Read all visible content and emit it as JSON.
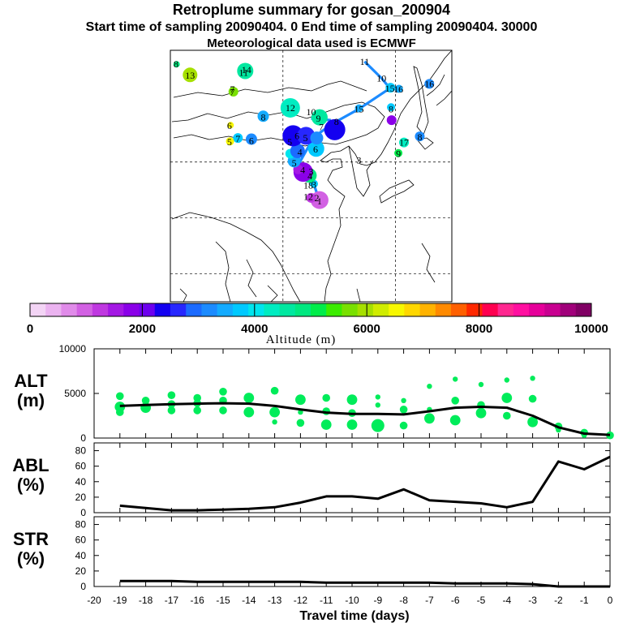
{
  "header": {
    "title": "Retroplume summary for gosan_200904",
    "sampling_line": "Start time of sampling 20090404.    0     End time of sampling 20090404. 30000",
    "met_line": "Meteorological data used is ECMWF"
  },
  "colorbar": {
    "colors": [
      "#f3d4f5",
      "#ebb3f0",
      "#e08be9",
      "#d261e3",
      "#bf38e0",
      "#a418e4",
      "#8a00e8",
      "#6d00ee",
      "#1400f0",
      "#2727ff",
      "#1c6bff",
      "#1c8bff",
      "#14abff",
      "#00c9ff",
      "#00e5ee",
      "#00ecc1",
      "#00e8a0",
      "#00e880",
      "#00ec4a",
      "#3cec00",
      "#79e000",
      "#a6e000",
      "#d0ec00",
      "#f7f700",
      "#ffd700",
      "#ffb300",
      "#ff8a00",
      "#ff6000",
      "#ff2800",
      "#ff0050",
      "#ff2890",
      "#ff10a0",
      "#e6009a",
      "#c80090",
      "#a0007a",
      "#800064"
    ],
    "tick_labels": [
      "0",
      "2000",
      "4000",
      "6000",
      "8000",
      "10000"
    ],
    "label": "Altitude (m)"
  },
  "map": {
    "numbers": [
      {
        "t": "1",
        "lon": 126.5,
        "lat": 33.0
      },
      {
        "t": "2",
        "lon": 126.0,
        "lat": 33.6
      },
      {
        "t": "3",
        "lon": 125.5,
        "lat": 36.0
      },
      {
        "t": "4",
        "lon": 124.8,
        "lat": 37.5
      },
      {
        "t": "3",
        "lon": 125.0,
        "lat": 38.3
      },
      {
        "t": "4",
        "lon": 123.5,
        "lat": 38.6
      },
      {
        "t": "5",
        "lon": 122.0,
        "lat": 39.8
      },
      {
        "t": "4",
        "lon": 123.0,
        "lat": 41.8
      },
      {
        "t": "5",
        "lon": 121.2,
        "lat": 43.6
      },
      {
        "t": "6",
        "lon": 122.5,
        "lat": 44.7
      },
      {
        "t": "5",
        "lon": 124.0,
        "lat": 44.3
      },
      {
        "t": "6",
        "lon": 125.8,
        "lat": 42.3
      },
      {
        "t": "7",
        "lon": 126.8,
        "lat": 46.3
      },
      {
        "t": "8",
        "lon": 129.5,
        "lat": 47.2
      },
      {
        "t": "9",
        "lon": 126.3,
        "lat": 47.8
      },
      {
        "t": "10",
        "lon": 125.0,
        "lat": 49.0
      },
      {
        "t": "12",
        "lon": 121.3,
        "lat": 49.7
      },
      {
        "t": "8",
        "lon": 116.5,
        "lat": 48.0
      },
      {
        "t": "6",
        "lon": 114.4,
        "lat": 43.8
      },
      {
        "t": "7",
        "lon": 112.0,
        "lat": 44.2
      },
      {
        "t": "5",
        "lon": 110.5,
        "lat": 43.6
      },
      {
        "t": "6",
        "lon": 110.5,
        "lat": 46.5
      },
      {
        "t": "7",
        "lon": 111.0,
        "lat": 52.5
      },
      {
        "t": "7",
        "lon": 111.0,
        "lat": 53.0
      },
      {
        "t": "13",
        "lon": 103.5,
        "lat": 55.5
      },
      {
        "t": "11",
        "lon": 113.0,
        "lat": 56.0
      },
      {
        "t": "14",
        "lon": 113.5,
        "lat": 56.5
      },
      {
        "t": "8",
        "lon": 101.0,
        "lat": 57.5
      },
      {
        "t": "11",
        "lon": 134.5,
        "lat": 58.0
      },
      {
        "t": "10",
        "lon": 137.5,
        "lat": 55.0
      },
      {
        "t": "15",
        "lon": 139.0,
        "lat": 53.2
      },
      {
        "t": "16",
        "lon": 140.5,
        "lat": 53.0
      },
      {
        "t": "16",
        "lon": 146.0,
        "lat": 54.0
      },
      {
        "t": "8",
        "lon": 139.2,
        "lat": 49.5
      },
      {
        "t": "15",
        "lon": 133.5,
        "lat": 49.5
      },
      {
        "t": "8",
        "lon": 144.3,
        "lat": 44.5
      },
      {
        "t": "17",
        "lon": 141.5,
        "lat": 43.5
      },
      {
        "t": "9",
        "lon": 140.5,
        "lat": 41.5
      },
      {
        "t": "3",
        "lon": 133.5,
        "lat": 40.3
      },
      {
        "t": "12",
        "lon": 124.5,
        "lat": 33.8
      },
      {
        "t": "18",
        "lon": 124.5,
        "lat": 35.8
      }
    ]
  },
  "chart_data": [
    {
      "type": "line",
      "name": "ALT",
      "ylabel": "ALT\n(m)",
      "ylabel_lines": [
        "ALT",
        "(m)"
      ],
      "ylim": [
        0,
        10000
      ],
      "ytick_labels": [
        "10000",
        "5000",
        "0"
      ],
      "x": [
        0,
        -1,
        -2,
        -3,
        -4,
        -5,
        -6,
        -7,
        -8,
        -9,
        -10,
        -11,
        -12,
        -13,
        -14,
        -15,
        -16,
        -17,
        -18,
        -19
      ],
      "series": [
        {
          "name": "mean altitude",
          "values": [
            350,
            500,
            1200,
            2500,
            3400,
            3500,
            3400,
            3000,
            2650,
            2700,
            2700,
            2850,
            3200,
            3600,
            3850,
            3900,
            3850,
            3800,
            3700,
            3600
          ]
        }
      ],
      "scatter": [
        {
          "x": -19,
          "y": 4700,
          "s": 2
        },
        {
          "x": -19,
          "y": 3500,
          "s": 3
        },
        {
          "x": -19,
          "y": 2900,
          "s": 2
        },
        {
          "x": -18,
          "y": 4200,
          "s": 2
        },
        {
          "x": -18,
          "y": 3400,
          "s": 3
        },
        {
          "x": -17,
          "y": 4800,
          "s": 2
        },
        {
          "x": -17,
          "y": 3800,
          "s": 2
        },
        {
          "x": -17,
          "y": 3100,
          "s": 2
        },
        {
          "x": -16,
          "y": 4500,
          "s": 2
        },
        {
          "x": -16,
          "y": 3900,
          "s": 2
        },
        {
          "x": -16,
          "y": 3100,
          "s": 2
        },
        {
          "x": -15,
          "y": 5200,
          "s": 2
        },
        {
          "x": -15,
          "y": 4200,
          "s": 2
        },
        {
          "x": -15,
          "y": 3100,
          "s": 2
        },
        {
          "x": -14,
          "y": 4500,
          "s": 3
        },
        {
          "x": -14,
          "y": 2900,
          "s": 3
        },
        {
          "x": -13,
          "y": 5300,
          "s": 2
        },
        {
          "x": -13,
          "y": 2900,
          "s": 3
        },
        {
          "x": -13,
          "y": 1800,
          "s": 1
        },
        {
          "x": -12,
          "y": 4300,
          "s": 3
        },
        {
          "x": -12,
          "y": 2900,
          "s": 1
        },
        {
          "x": -12,
          "y": 1700,
          "s": 2
        },
        {
          "x": -11,
          "y": 4500,
          "s": 2
        },
        {
          "x": -11,
          "y": 3000,
          "s": 2
        },
        {
          "x": -11,
          "y": 1500,
          "s": 3
        },
        {
          "x": -10,
          "y": 4300,
          "s": 3
        },
        {
          "x": -10,
          "y": 2800,
          "s": 2
        },
        {
          "x": -10,
          "y": 1500,
          "s": 3
        },
        {
          "x": -9,
          "y": 4600,
          "s": 1
        },
        {
          "x": -9,
          "y": 3700,
          "s": 1
        },
        {
          "x": -9,
          "y": 1400,
          "s": 4
        },
        {
          "x": -8,
          "y": 4200,
          "s": 1
        },
        {
          "x": -8,
          "y": 3200,
          "s": 2
        },
        {
          "x": -8,
          "y": 1400,
          "s": 2
        },
        {
          "x": -7,
          "y": 5800,
          "s": 1
        },
        {
          "x": -7,
          "y": 3200,
          "s": 1
        },
        {
          "x": -7,
          "y": 2200,
          "s": 3
        },
        {
          "x": -6,
          "y": 6600,
          "s": 1
        },
        {
          "x": -6,
          "y": 4200,
          "s": 2
        },
        {
          "x": -6,
          "y": 2000,
          "s": 3
        },
        {
          "x": -5,
          "y": 6000,
          "s": 1
        },
        {
          "x": -5,
          "y": 3700,
          "s": 2
        },
        {
          "x": -5,
          "y": 2800,
          "s": 3
        },
        {
          "x": -4,
          "y": 6500,
          "s": 1
        },
        {
          "x": -4,
          "y": 4500,
          "s": 3
        },
        {
          "x": -4,
          "y": 2500,
          "s": 2
        },
        {
          "x": -3,
          "y": 6700,
          "s": 1
        },
        {
          "x": -3,
          "y": 4400,
          "s": 2
        },
        {
          "x": -3,
          "y": 1800,
          "s": 3
        },
        {
          "x": -2,
          "y": 1300,
          "s": 2
        },
        {
          "x": -2,
          "y": 900,
          "s": 1
        },
        {
          "x": -1,
          "y": 600,
          "s": 2
        },
        {
          "x": -1,
          "y": 300,
          "s": 1
        },
        {
          "x": 0,
          "y": 300,
          "s": 2
        }
      ]
    },
    {
      "type": "line",
      "name": "ABL",
      "ylabel": "ABL\n(%)",
      "ylabel_lines": [
        "ABL",
        "(%)"
      ],
      "ylim": [
        0,
        90
      ],
      "ytick_labels": [
        "80",
        "60",
        "40",
        "20",
        "0"
      ],
      "x": [
        0,
        -1,
        -2,
        -3,
        -4,
        -5,
        -6,
        -7,
        -8,
        -9,
        -10,
        -11,
        -12,
        -13,
        -14,
        -15,
        -16,
        -17,
        -18,
        -19
      ],
      "series": [
        {
          "name": "ABL fraction",
          "values": [
            72,
            56,
            66,
            14,
            7,
            12,
            14,
            16,
            30,
            18,
            21,
            21,
            13,
            7,
            5,
            4,
            3,
            3,
            6,
            9
          ]
        }
      ]
    },
    {
      "type": "line",
      "name": "STR",
      "ylabel": "STR\n(%)",
      "ylabel_lines": [
        "STR",
        "(%)"
      ],
      "ylim": [
        0,
        90
      ],
      "ytick_labels": [
        "80",
        "60",
        "40",
        "20",
        "0"
      ],
      "x": [
        0,
        -1,
        -2,
        -3,
        -4,
        -5,
        -6,
        -7,
        -8,
        -9,
        -10,
        -11,
        -12,
        -13,
        -14,
        -15,
        -16,
        -17,
        -18,
        -19
      ],
      "series": [
        {
          "name": "stratospheric fraction",
          "values": [
            0,
            0,
            0,
            3,
            4,
            4,
            4,
            5,
            5,
            5,
            5,
            5,
            6,
            6,
            6,
            6,
            6,
            7,
            7,
            7
          ]
        }
      ],
      "xlabel": "Travel time (days)",
      "xtick_labels": [
        "-20",
        "-19",
        "-18",
        "-17",
        "-16",
        "-15",
        "-14",
        "-13",
        "-12",
        "-11",
        "-10",
        "-9",
        "-8",
        "-7",
        "-6",
        "-5",
        "-4",
        "-3",
        "-2",
        "-1",
        "0"
      ],
      "xlim": [
        -20,
        0
      ]
    }
  ]
}
